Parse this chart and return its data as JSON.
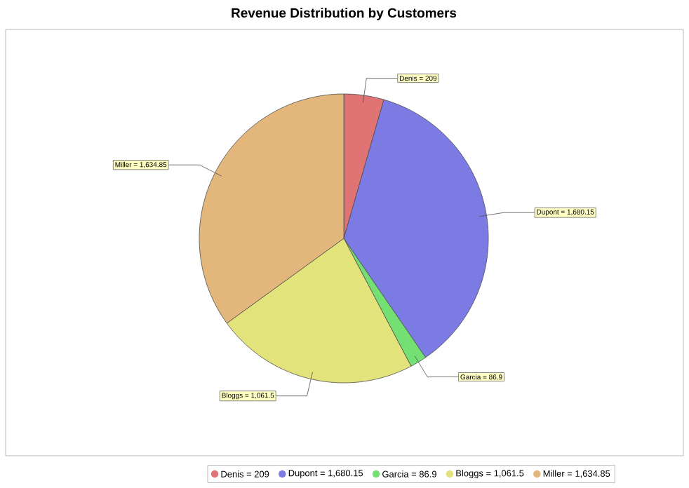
{
  "chart_data": {
    "type": "pie",
    "title": "Revenue Distribution by Customers",
    "categories": [
      "Denis = 209",
      "Dupont = 1,680.15",
      "Garcia = 86.9",
      "Bloggs = 1,061.5",
      "Miller = 1,634.85"
    ],
    "values": [
      209,
      1680.15,
      86.9,
      1061.5,
      1634.85
    ],
    "colors": [
      "#e07474",
      "#7b7be3",
      "#74e074",
      "#e3e37b",
      "#e3b77b"
    ],
    "legend": "bottom"
  }
}
